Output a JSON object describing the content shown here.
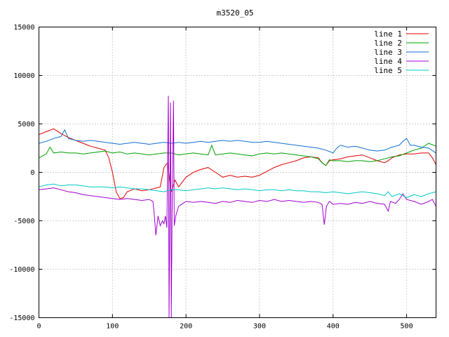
{
  "chart_data": {
    "type": "line",
    "title": "m3520_05",
    "xlabel": "",
    "ylabel": "",
    "xlim": [
      0,
      540
    ],
    "ylim": [
      -15000,
      15000
    ],
    "x_ticks": [
      0,
      100,
      200,
      300,
      400,
      500
    ],
    "y_ticks": [
      -15000,
      -10000,
      -5000,
      0,
      5000,
      10000,
      15000
    ],
    "grid": true,
    "legend_position": "top-right",
    "series": [
      {
        "name": "line 1",
        "color": "#e00000",
        "points": [
          [
            0,
            3900
          ],
          [
            10,
            4200
          ],
          [
            20,
            4500
          ],
          [
            30,
            4000
          ],
          [
            40,
            3600
          ],
          [
            50,
            3300
          ],
          [
            60,
            3000
          ],
          [
            70,
            2700
          ],
          [
            80,
            2500
          ],
          [
            90,
            2300
          ],
          [
            95,
            1500
          ],
          [
            100,
            0
          ],
          [
            105,
            -2000
          ],
          [
            110,
            -2700
          ],
          [
            115,
            -2600
          ],
          [
            120,
            -2000
          ],
          [
            130,
            -1700
          ],
          [
            140,
            -1900
          ],
          [
            150,
            -1800
          ],
          [
            160,
            -1600
          ],
          [
            165,
            -1500
          ],
          [
            170,
            500
          ],
          [
            175,
            1000
          ],
          [
            178,
            -1000
          ],
          [
            180,
            -2000
          ],
          [
            185,
            -800
          ],
          [
            190,
            -1500
          ],
          [
            200,
            -500
          ],
          [
            210,
            0
          ],
          [
            220,
            300
          ],
          [
            230,
            500
          ],
          [
            240,
            0
          ],
          [
            250,
            -500
          ],
          [
            260,
            -300
          ],
          [
            270,
            -500
          ],
          [
            280,
            -400
          ],
          [
            290,
            -500
          ],
          [
            300,
            -300
          ],
          [
            310,
            100
          ],
          [
            320,
            500
          ],
          [
            330,
            800
          ],
          [
            340,
            1000
          ],
          [
            350,
            1200
          ],
          [
            360,
            1500
          ],
          [
            370,
            1600
          ],
          [
            380,
            1500
          ],
          [
            385,
            1000
          ],
          [
            390,
            700
          ],
          [
            395,
            1200
          ],
          [
            400,
            1300
          ],
          [
            410,
            1400
          ],
          [
            420,
            1600
          ],
          [
            430,
            1700
          ],
          [
            440,
            1800
          ],
          [
            450,
            1500
          ],
          [
            460,
            1200
          ],
          [
            470,
            1000
          ],
          [
            475,
            1200
          ],
          [
            480,
            1500
          ],
          [
            490,
            1800
          ],
          [
            500,
            1900
          ],
          [
            510,
            1900
          ],
          [
            520,
            2000
          ],
          [
            530,
            2000
          ],
          [
            535,
            1500
          ],
          [
            540,
            800
          ]
        ]
      },
      {
        "name": "line 2",
        "color": "#00a000",
        "points": [
          [
            0,
            1500
          ],
          [
            10,
            1900
          ],
          [
            15,
            2600
          ],
          [
            20,
            2000
          ],
          [
            30,
            2100
          ],
          [
            40,
            2000
          ],
          [
            50,
            2000
          ],
          [
            60,
            1900
          ],
          [
            70,
            2000
          ],
          [
            80,
            2100
          ],
          [
            90,
            2200
          ],
          [
            100,
            2000
          ],
          [
            110,
            2100
          ],
          [
            120,
            1900
          ],
          [
            130,
            2000
          ],
          [
            140,
            1900
          ],
          [
            150,
            1800
          ],
          [
            160,
            1900
          ],
          [
            170,
            2000
          ],
          [
            180,
            2000
          ],
          [
            190,
            1800
          ],
          [
            200,
            1900
          ],
          [
            210,
            2000
          ],
          [
            220,
            1900
          ],
          [
            230,
            1800
          ],
          [
            235,
            2800
          ],
          [
            240,
            1800
          ],
          [
            250,
            1900
          ],
          [
            260,
            2000
          ],
          [
            270,
            1900
          ],
          [
            280,
            1800
          ],
          [
            290,
            1700
          ],
          [
            300,
            1900
          ],
          [
            310,
            2000
          ],
          [
            320,
            1900
          ],
          [
            330,
            2000
          ],
          [
            340,
            1900
          ],
          [
            350,
            1800
          ],
          [
            360,
            1700
          ],
          [
            370,
            1600
          ],
          [
            380,
            1400
          ],
          [
            385,
            1000
          ],
          [
            390,
            700
          ],
          [
            395,
            1300
          ],
          [
            400,
            1200
          ],
          [
            410,
            1200
          ],
          [
            420,
            1100
          ],
          [
            430,
            1200
          ],
          [
            440,
            1200
          ],
          [
            450,
            1100
          ],
          [
            460,
            1200
          ],
          [
            470,
            1400
          ],
          [
            480,
            1600
          ],
          [
            490,
            1700
          ],
          [
            500,
            2000
          ],
          [
            510,
            2300
          ],
          [
            520,
            2500
          ],
          [
            530,
            3000
          ],
          [
            540,
            2700
          ]
        ]
      },
      {
        "name": "line 3",
        "color": "#1070d0",
        "points": [
          [
            0,
            3000
          ],
          [
            10,
            3200
          ],
          [
            20,
            3500
          ],
          [
            30,
            3700
          ],
          [
            35,
            4400
          ],
          [
            40,
            3500
          ],
          [
            50,
            3300
          ],
          [
            60,
            3200
          ],
          [
            70,
            3300
          ],
          [
            80,
            3200
          ],
          [
            90,
            3100
          ],
          [
            100,
            3000
          ],
          [
            110,
            2900
          ],
          [
            120,
            3000
          ],
          [
            130,
            3100
          ],
          [
            140,
            3000
          ],
          [
            150,
            2900
          ],
          [
            160,
            3000
          ],
          [
            170,
            3100
          ],
          [
            180,
            3000
          ],
          [
            190,
            3100
          ],
          [
            200,
            3000
          ],
          [
            210,
            3100
          ],
          [
            220,
            3200
          ],
          [
            230,
            3100
          ],
          [
            240,
            3200
          ],
          [
            250,
            3300
          ],
          [
            260,
            3200
          ],
          [
            270,
            3300
          ],
          [
            280,
            3200
          ],
          [
            290,
            3100
          ],
          [
            300,
            3100
          ],
          [
            310,
            3200
          ],
          [
            320,
            3100
          ],
          [
            330,
            3000
          ],
          [
            340,
            2900
          ],
          [
            350,
            2800
          ],
          [
            360,
            2700
          ],
          [
            370,
            2600
          ],
          [
            380,
            2500
          ],
          [
            390,
            2300
          ],
          [
            400,
            2000
          ],
          [
            405,
            2500
          ],
          [
            410,
            2800
          ],
          [
            420,
            2600
          ],
          [
            430,
            2700
          ],
          [
            440,
            2500
          ],
          [
            450,
            2300
          ],
          [
            460,
            2200
          ],
          [
            470,
            2300
          ],
          [
            480,
            2600
          ],
          [
            490,
            2800
          ],
          [
            495,
            3200
          ],
          [
            500,
            3500
          ],
          [
            505,
            2800
          ],
          [
            510,
            2800
          ],
          [
            520,
            2600
          ],
          [
            530,
            2500
          ],
          [
            540,
            2000
          ]
        ]
      },
      {
        "name": "line 4",
        "color": "#a000d0",
        "points": [
          [
            0,
            -1800
          ],
          [
            10,
            -1700
          ],
          [
            20,
            -1600
          ],
          [
            30,
            -1800
          ],
          [
            40,
            -2000
          ],
          [
            50,
            -2100
          ],
          [
            60,
            -2300
          ],
          [
            70,
            -2400
          ],
          [
            80,
            -2500
          ],
          [
            90,
            -2600
          ],
          [
            100,
            -2700
          ],
          [
            110,
            -2800
          ],
          [
            120,
            -2700
          ],
          [
            130,
            -2800
          ],
          [
            140,
            -2900
          ],
          [
            150,
            -2800
          ],
          [
            155,
            -3000
          ],
          [
            157,
            -4500
          ],
          [
            159,
            -6500
          ],
          [
            162,
            -4500
          ],
          [
            165,
            -5500
          ],
          [
            168,
            -5000
          ],
          [
            170,
            -5300
          ],
          [
            172,
            -4500
          ],
          [
            174,
            -5700
          ],
          [
            176,
            7900
          ],
          [
            177,
            -15000
          ],
          [
            179,
            7200
          ],
          [
            180,
            -15000
          ],
          [
            181,
            -5000
          ],
          [
            183,
            7400
          ],
          [
            184,
            -5500
          ],
          [
            186,
            -4500
          ],
          [
            190,
            -3500
          ],
          [
            200,
            -3000
          ],
          [
            210,
            -3100
          ],
          [
            220,
            -3000
          ],
          [
            230,
            -3100
          ],
          [
            240,
            -3200
          ],
          [
            250,
            -3000
          ],
          [
            260,
            -3100
          ],
          [
            270,
            -2900
          ],
          [
            280,
            -3000
          ],
          [
            290,
            -3100
          ],
          [
            300,
            -2900
          ],
          [
            310,
            -3000
          ],
          [
            320,
            -2800
          ],
          [
            330,
            -3000
          ],
          [
            340,
            -2900
          ],
          [
            350,
            -3000
          ],
          [
            360,
            -3100
          ],
          [
            370,
            -3000
          ],
          [
            380,
            -3100
          ],
          [
            385,
            -3300
          ],
          [
            388,
            -5400
          ],
          [
            391,
            -3500
          ],
          [
            395,
            -3000
          ],
          [
            400,
            -3300
          ],
          [
            410,
            -3200
          ],
          [
            420,
            -3300
          ],
          [
            430,
            -3100
          ],
          [
            440,
            -3200
          ],
          [
            450,
            -3000
          ],
          [
            460,
            -3200
          ],
          [
            470,
            -3300
          ],
          [
            475,
            -4000
          ],
          [
            478,
            -3000
          ],
          [
            485,
            -3200
          ],
          [
            490,
            -2800
          ],
          [
            495,
            -2200
          ],
          [
            500,
            -2800
          ],
          [
            510,
            -3000
          ],
          [
            520,
            -3300
          ],
          [
            530,
            -3000
          ],
          [
            535,
            -2800
          ],
          [
            540,
            -3500
          ]
        ]
      },
      {
        "name": "line 5",
        "color": "#00c8c8",
        "points": [
          [
            0,
            -1500
          ],
          [
            10,
            -1300
          ],
          [
            20,
            -1200
          ],
          [
            30,
            -1400
          ],
          [
            40,
            -1300
          ],
          [
            50,
            -1300
          ],
          [
            60,
            -1400
          ],
          [
            70,
            -1500
          ],
          [
            80,
            -1500
          ],
          [
            90,
            -1500
          ],
          [
            100,
            -1600
          ],
          [
            110,
            -1500
          ],
          [
            120,
            -1600
          ],
          [
            130,
            -1700
          ],
          [
            140,
            -1700
          ],
          [
            150,
            -1800
          ],
          [
            160,
            -1900
          ],
          [
            170,
            -2000
          ],
          [
            180,
            -1800
          ],
          [
            190,
            -1800
          ],
          [
            200,
            -1900
          ],
          [
            210,
            -1800
          ],
          [
            220,
            -1700
          ],
          [
            230,
            -1600
          ],
          [
            240,
            -1700
          ],
          [
            250,
            -1600
          ],
          [
            260,
            -1700
          ],
          [
            270,
            -1800
          ],
          [
            280,
            -1700
          ],
          [
            290,
            -1800
          ],
          [
            300,
            -1900
          ],
          [
            310,
            -1800
          ],
          [
            320,
            -1800
          ],
          [
            330,
            -1900
          ],
          [
            340,
            -1800
          ],
          [
            350,
            -1900
          ],
          [
            360,
            -1900
          ],
          [
            370,
            -2000
          ],
          [
            380,
            -2000
          ],
          [
            390,
            -2100
          ],
          [
            400,
            -2000
          ],
          [
            410,
            -2100
          ],
          [
            420,
            -2200
          ],
          [
            430,
            -2100
          ],
          [
            440,
            -2000
          ],
          [
            450,
            -2100
          ],
          [
            460,
            -2200
          ],
          [
            470,
            -2400
          ],
          [
            475,
            -2000
          ],
          [
            480,
            -2500
          ],
          [
            490,
            -2200
          ],
          [
            500,
            -2600
          ],
          [
            510,
            -2300
          ],
          [
            520,
            -2500
          ],
          [
            530,
            -2200
          ],
          [
            540,
            -2000
          ]
        ]
      }
    ]
  }
}
